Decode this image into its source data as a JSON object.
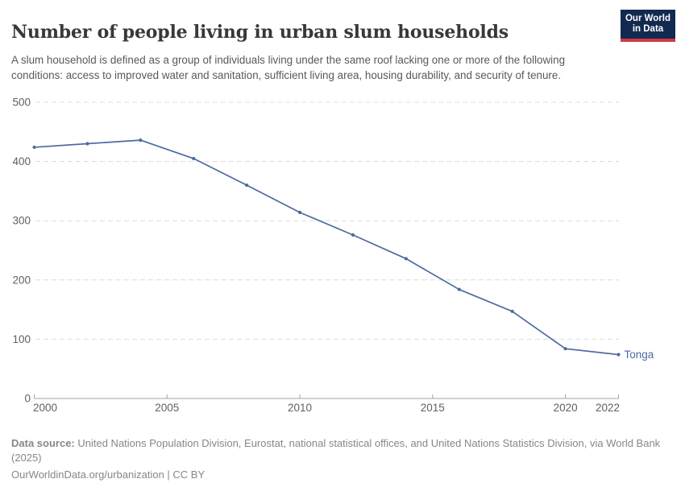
{
  "header": {
    "title": "Number of people living in urban slum households",
    "subtitle": "A slum household is defined as a group of individuals living under the same roof lacking one or more of the following conditions: access to improved water and sanitation, sufficient living area, housing durability, and security of tenure.",
    "logo": {
      "line1": "Our World",
      "line2": "in Data",
      "bg_color": "#132a50",
      "accent_color": "#cf3a3e"
    }
  },
  "chart_data": {
    "type": "line",
    "title": "Number of people living in urban slum households",
    "xlabel": "",
    "ylabel": "",
    "x": [
      2000,
      2002,
      2004,
      2006,
      2008,
      2010,
      2012,
      2014,
      2016,
      2018,
      2020,
      2022
    ],
    "series": [
      {
        "name": "Tonga",
        "color": "#4c6aa0",
        "values": [
          424,
          430,
          436,
          405,
          360,
          314,
          276,
          236,
          184,
          147,
          84,
          74
        ]
      }
    ],
    "end_label": "Tonga",
    "xlim": [
      2000,
      2022
    ],
    "ylim": [
      0,
      500
    ],
    "xticks": [
      2000,
      2005,
      2010,
      2015,
      2020,
      2022
    ],
    "yticks": [
      0,
      100,
      200,
      300,
      400,
      500
    ],
    "grid": "horizontal-dashed",
    "grid_color": "#dcdcdc",
    "axis_color": "#a3a3a3",
    "tick_label_color": "#606060",
    "legend_position": "end-of-line"
  },
  "footer": {
    "source_prefix": "Data source:",
    "source_text": " United Nations Population Division, Eurostat, national statistical offices, and United Nations Statistics Division, via World Bank (2025)",
    "note": "OurWorldinData.org/urbanization | CC BY"
  }
}
